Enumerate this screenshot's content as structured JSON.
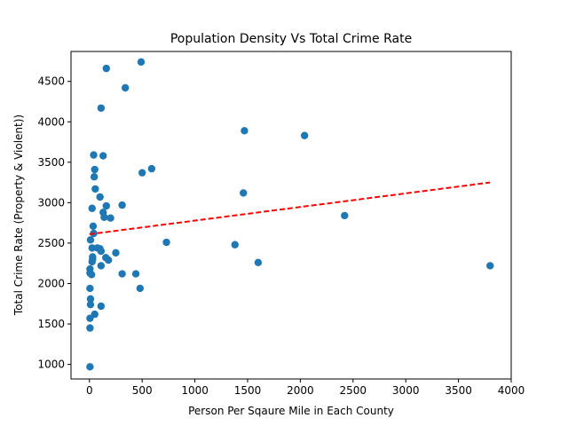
{
  "chart_data": {
    "type": "scatter",
    "title": "Population Density Vs Total Crime Rate",
    "xlabel": "Person Per Sqaure Mile in Each County",
    "ylabel": "Total Crime Rate (Property & Violent))",
    "xlim": [
      -175,
      4000
    ],
    "ylim": [
      820,
      4870
    ],
    "xticks": [
      0,
      500,
      1000,
      1500,
      2000,
      2500,
      3000,
      3500,
      4000
    ],
    "yticks": [
      1000,
      1500,
      2000,
      2500,
      3000,
      3500,
      4000,
      4500
    ],
    "grid": false,
    "marker_color": "#1f77b4",
    "trend_color": "#ff0000",
    "points": [
      {
        "x": 490,
        "y": 4740
      },
      {
        "x": 160,
        "y": 4660
      },
      {
        "x": 340,
        "y": 4420
      },
      {
        "x": 110,
        "y": 4170
      },
      {
        "x": 1470,
        "y": 3890
      },
      {
        "x": 2040,
        "y": 3830
      },
      {
        "x": 40,
        "y": 3590
      },
      {
        "x": 130,
        "y": 3580
      },
      {
        "x": 590,
        "y": 3420
      },
      {
        "x": 50,
        "y": 3410
      },
      {
        "x": 500,
        "y": 3370
      },
      {
        "x": 45,
        "y": 3320
      },
      {
        "x": 55,
        "y": 3170
      },
      {
        "x": 1460,
        "y": 3120
      },
      {
        "x": 100,
        "y": 3070
      },
      {
        "x": 310,
        "y": 2970
      },
      {
        "x": 160,
        "y": 2960
      },
      {
        "x": 25,
        "y": 2930
      },
      {
        "x": 130,
        "y": 2880
      },
      {
        "x": 140,
        "y": 2820
      },
      {
        "x": 200,
        "y": 2810
      },
      {
        "x": 2420,
        "y": 2840
      },
      {
        "x": 35,
        "y": 2710
      },
      {
        "x": 40,
        "y": 2620
      },
      {
        "x": 10,
        "y": 2540
      },
      {
        "x": 730,
        "y": 2510
      },
      {
        "x": 1380,
        "y": 2480
      },
      {
        "x": 25,
        "y": 2440
      },
      {
        "x": 75,
        "y": 2440
      },
      {
        "x": 100,
        "y": 2430
      },
      {
        "x": 110,
        "y": 2400
      },
      {
        "x": 250,
        "y": 2380
      },
      {
        "x": 30,
        "y": 2330
      },
      {
        "x": 155,
        "y": 2320
      },
      {
        "x": 30,
        "y": 2300
      },
      {
        "x": 180,
        "y": 2290
      },
      {
        "x": 25,
        "y": 2270
      },
      {
        "x": 1600,
        "y": 2260
      },
      {
        "x": 110,
        "y": 2220
      },
      {
        "x": 3800,
        "y": 2220
      },
      {
        "x": 5,
        "y": 2180
      },
      {
        "x": 5,
        "y": 2130
      },
      {
        "x": 20,
        "y": 2110
      },
      {
        "x": 310,
        "y": 2120
      },
      {
        "x": 440,
        "y": 2120
      },
      {
        "x": 5,
        "y": 1940
      },
      {
        "x": 480,
        "y": 1940
      },
      {
        "x": 10,
        "y": 1810
      },
      {
        "x": 10,
        "y": 1740
      },
      {
        "x": 110,
        "y": 1720
      },
      {
        "x": 50,
        "y": 1620
      },
      {
        "x": 5,
        "y": 1570
      },
      {
        "x": 5,
        "y": 1450
      },
      {
        "x": 5,
        "y": 970
      }
    ],
    "trendline": {
      "x": [
        0,
        3800
      ],
      "y": [
        2610,
        3250
      ],
      "style": "dashed"
    }
  }
}
